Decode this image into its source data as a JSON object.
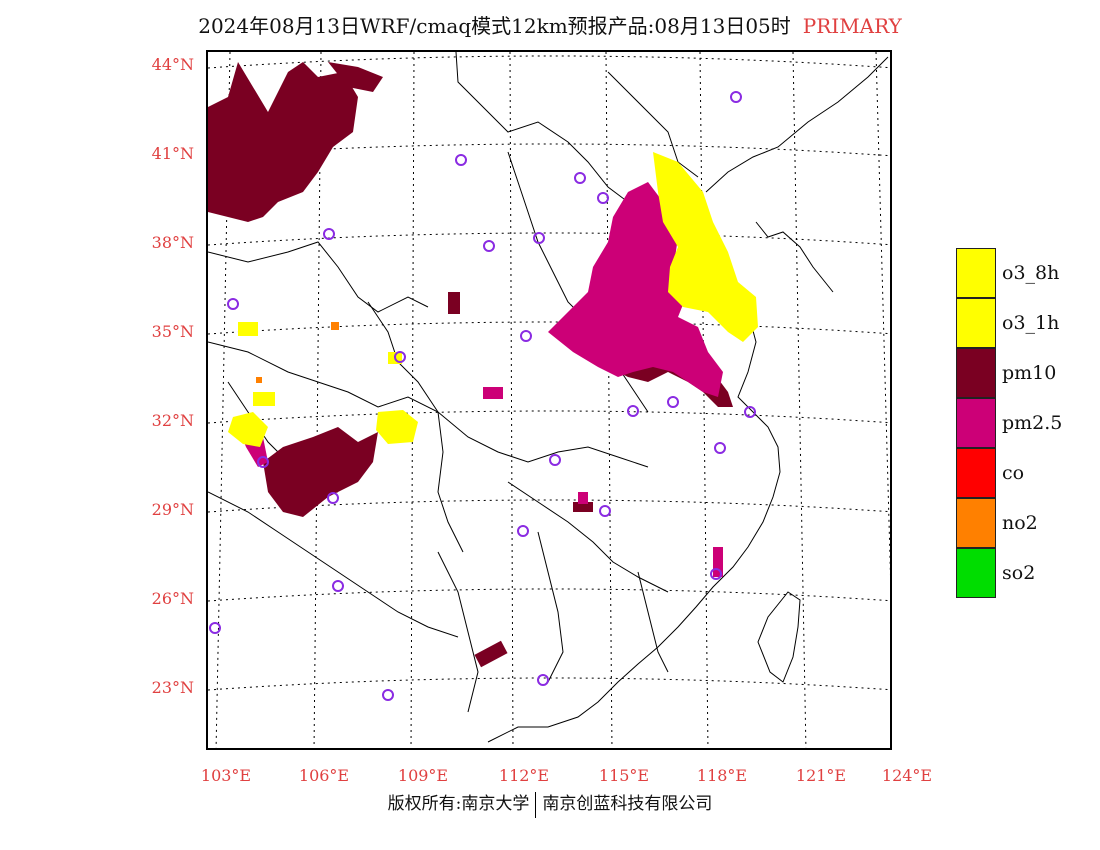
{
  "header": {
    "title": "2024年08月13日WRF/cmaq模式12km预报产品:08月13日05时",
    "tag": "PRIMARY"
  },
  "axes": {
    "lat_labels": [
      "44°N",
      "41°N",
      "38°N",
      "35°N",
      "32°N",
      "29°N",
      "26°N",
      "23°N"
    ],
    "lon_labels": [
      "103°E",
      "106°E",
      "109°E",
      "112°E",
      "115°E",
      "118°E",
      "121°E",
      "124°E"
    ]
  },
  "legend": {
    "items": [
      {
        "label": "o3_8h",
        "color": "#ffff00"
      },
      {
        "label": "o3_1h",
        "color": "#ffff00"
      },
      {
        "label": "pm10",
        "color": "#7a0022"
      },
      {
        "label": "pm2.5",
        "color": "#cc0077"
      },
      {
        "label": "co",
        "color": "#ff0000"
      },
      {
        "label": "no2",
        "color": "#ff8000"
      },
      {
        "label": "so2",
        "color": "#00dd00"
      }
    ]
  },
  "footer": {
    "copyright": "版权所有:南京大学",
    "company": "南京创蓝科技有限公司"
  },
  "colors": {
    "label_red": "#e04040",
    "pm10": "#7a0022",
    "pm25": "#cc0077",
    "o3": "#ffff00",
    "no2": "#ff8000",
    "station_circle": "#8a2be2"
  }
}
